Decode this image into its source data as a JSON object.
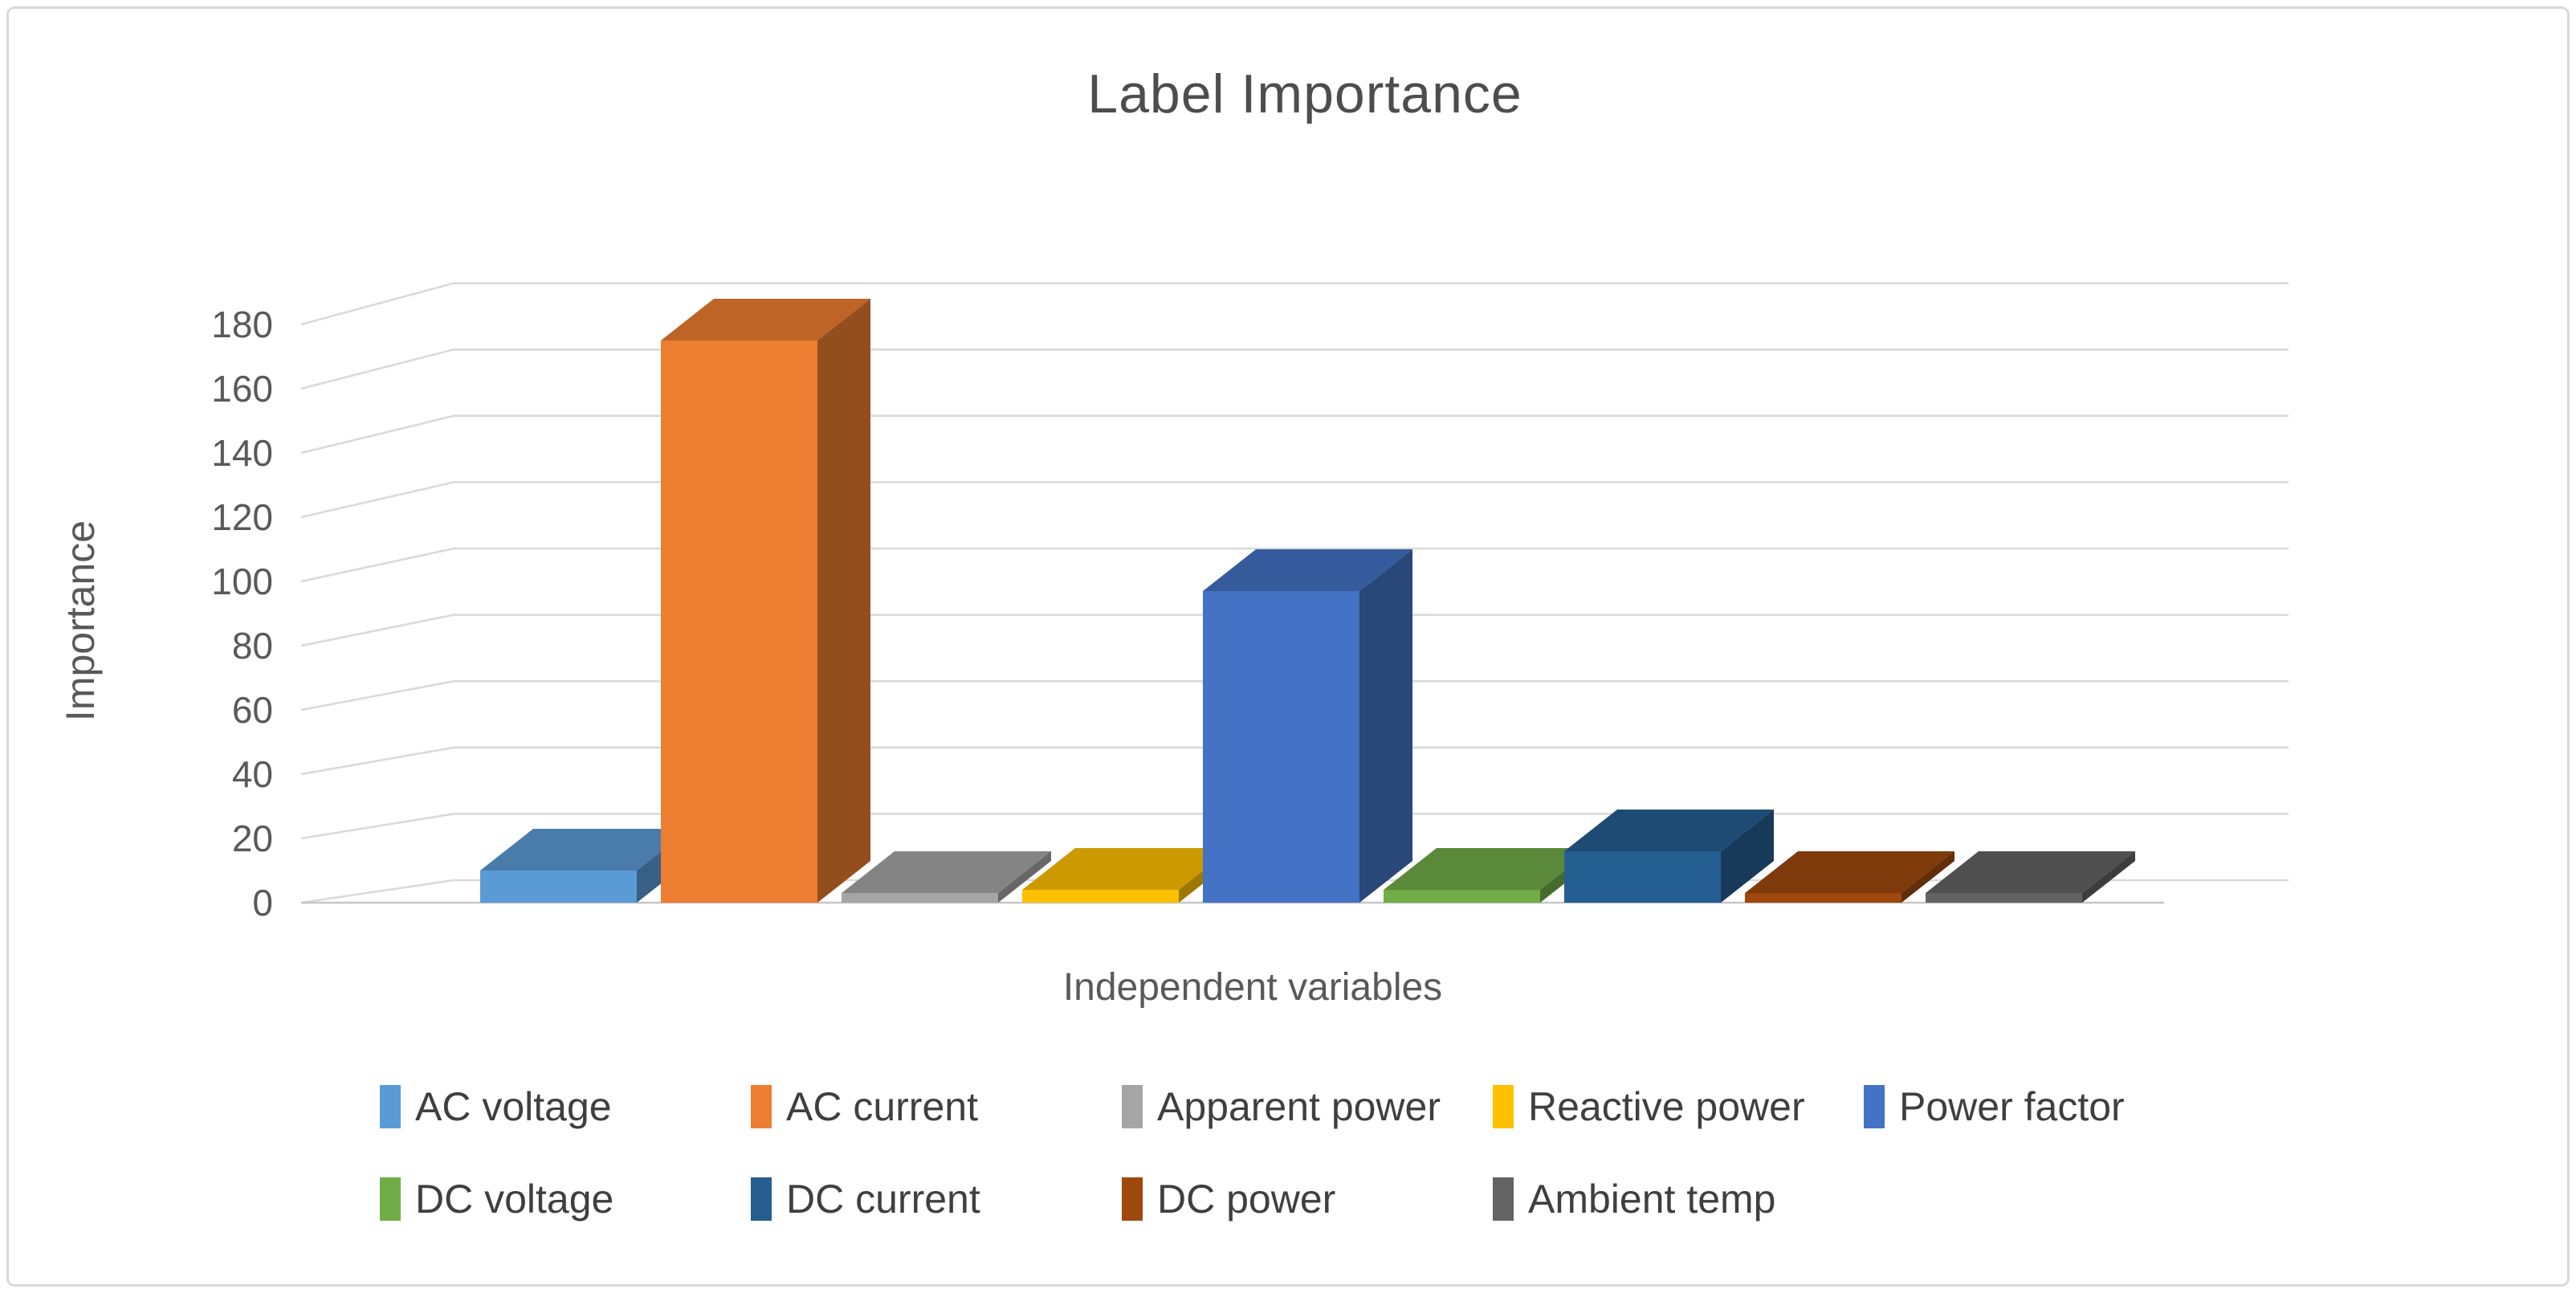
{
  "chart_data": {
    "type": "bar",
    "projection": "3d",
    "title": "Label Importance",
    "xlabel": "Independent variables",
    "ylabel": "Importance",
    "categories": [
      "AC voltage",
      "AC current",
      "Apparent power",
      "Reactive power",
      "Power factor",
      "DC voltage",
      "DC current",
      "DC power",
      "Ambient temp"
    ],
    "values": [
      10,
      175,
      3,
      4,
      97,
      4,
      16,
      3,
      3
    ],
    "colors": [
      "#5B9BD5",
      "#ED7D31",
      "#A5A5A5",
      "#FFC000",
      "#4472C4",
      "#70AD47",
      "#255E91",
      "#9E480E",
      "#636363"
    ],
    "yticks": [
      0,
      20,
      40,
      60,
      80,
      100,
      120,
      140,
      160,
      180
    ],
    "ylim": [
      0,
      180
    ],
    "grid": true,
    "legend_position": "bottom"
  },
  "styles": {
    "background": "#FFFFFF",
    "border_color": "#D9D9D9",
    "gridline_color": "#D9D9D9",
    "floor_line_color": "#C6C6C6",
    "title_color": "#4D4D4D",
    "axis_text_color": "#595959",
    "legend_text_color": "#3F3F3F"
  }
}
